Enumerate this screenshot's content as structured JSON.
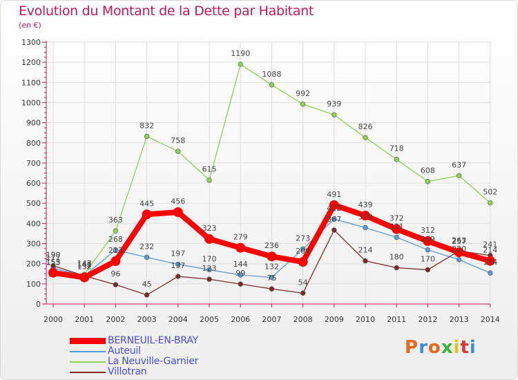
{
  "title": "Evolution du Montant de la Dette par Habitant",
  "unit": "(en €)",
  "logo": {
    "text": "Proxiti",
    "colors": [
      "#e8661a",
      "#3a8fd8",
      "#e8661a",
      "#3fb039",
      "#e8c21a",
      "#d83a3a",
      "#3a8fd8"
    ]
  },
  "chart_data": {
    "type": "line",
    "categories": [
      "2000",
      "2001",
      "2002",
      "2003",
      "2004",
      "2005",
      "2006",
      "2007",
      "2008",
      "2009",
      "2010",
      "2011",
      "2012",
      "2013",
      "2014"
    ],
    "ylim": [
      0,
      1300
    ],
    "yticks": [
      0,
      100,
      200,
      300,
      400,
      500,
      600,
      700,
      800,
      900,
      1000,
      1100,
      1200,
      1300
    ],
    "grid": true,
    "legend_position": "bottom-left",
    "series": [
      {
        "name": "Auteuil",
        "color": "#5b9bd5",
        "values": [
          177,
          141,
          268,
          232,
          197,
          170,
          144,
          132,
          273,
          422,
          379,
          331,
          269,
          220,
          154
        ],
        "labels": [
          "177",
          "141",
          "268",
          "232",
          "197",
          "170",
          "144",
          "132",
          "273",
          "422",
          "379",
          "331",
          "269",
          "220",
          "154"
        ]
      },
      {
        "name": "La Neuville-Garnier",
        "color": "#8fd14f",
        "values": [
          153,
          147,
          363,
          832,
          758,
          615,
          1190,
          1088,
          992,
          939,
          826,
          718,
          608,
          637,
          502
        ],
        "labels": [
          "153",
          "147",
          "363",
          "832",
          "758",
          "615",
          "1190",
          "1088",
          "992",
          "939",
          "826",
          "718",
          "608",
          "637",
          "502"
        ]
      },
      {
        "name": "Villotran",
        "color": "#7b2a2a",
        "values": [
          190,
          140,
          96,
          45,
          137,
          123,
          99,
          75,
          54,
          367,
          214,
          180,
          170,
          263,
          241
        ],
        "labels": [
          "190",
          "140",
          "96",
          "45",
          "137",
          "123",
          "99",
          "75",
          "54",
          "367",
          "214",
          "180",
          "170",
          "263",
          "241"
        ]
      },
      {
        "name": "BERNEUIL-EN-BRAY",
        "color": "#ff0000",
        "values": [
          155,
          132,
          213,
          445,
          456,
          323,
          279,
          236,
          209,
          491,
          439,
          372,
          312,
          257,
          214
        ],
        "labels": [
          "155",
          "132",
          "213",
          "445",
          "456",
          "323",
          "279",
          "236",
          "209",
          "491",
          "439",
          "372",
          "312",
          "257",
          "214"
        ]
      }
    ],
    "legend": [
      "BERNEUIL-EN-BRAY",
      "Auteuil",
      "La Neuville-Garnier",
      "Villotran"
    ]
  }
}
